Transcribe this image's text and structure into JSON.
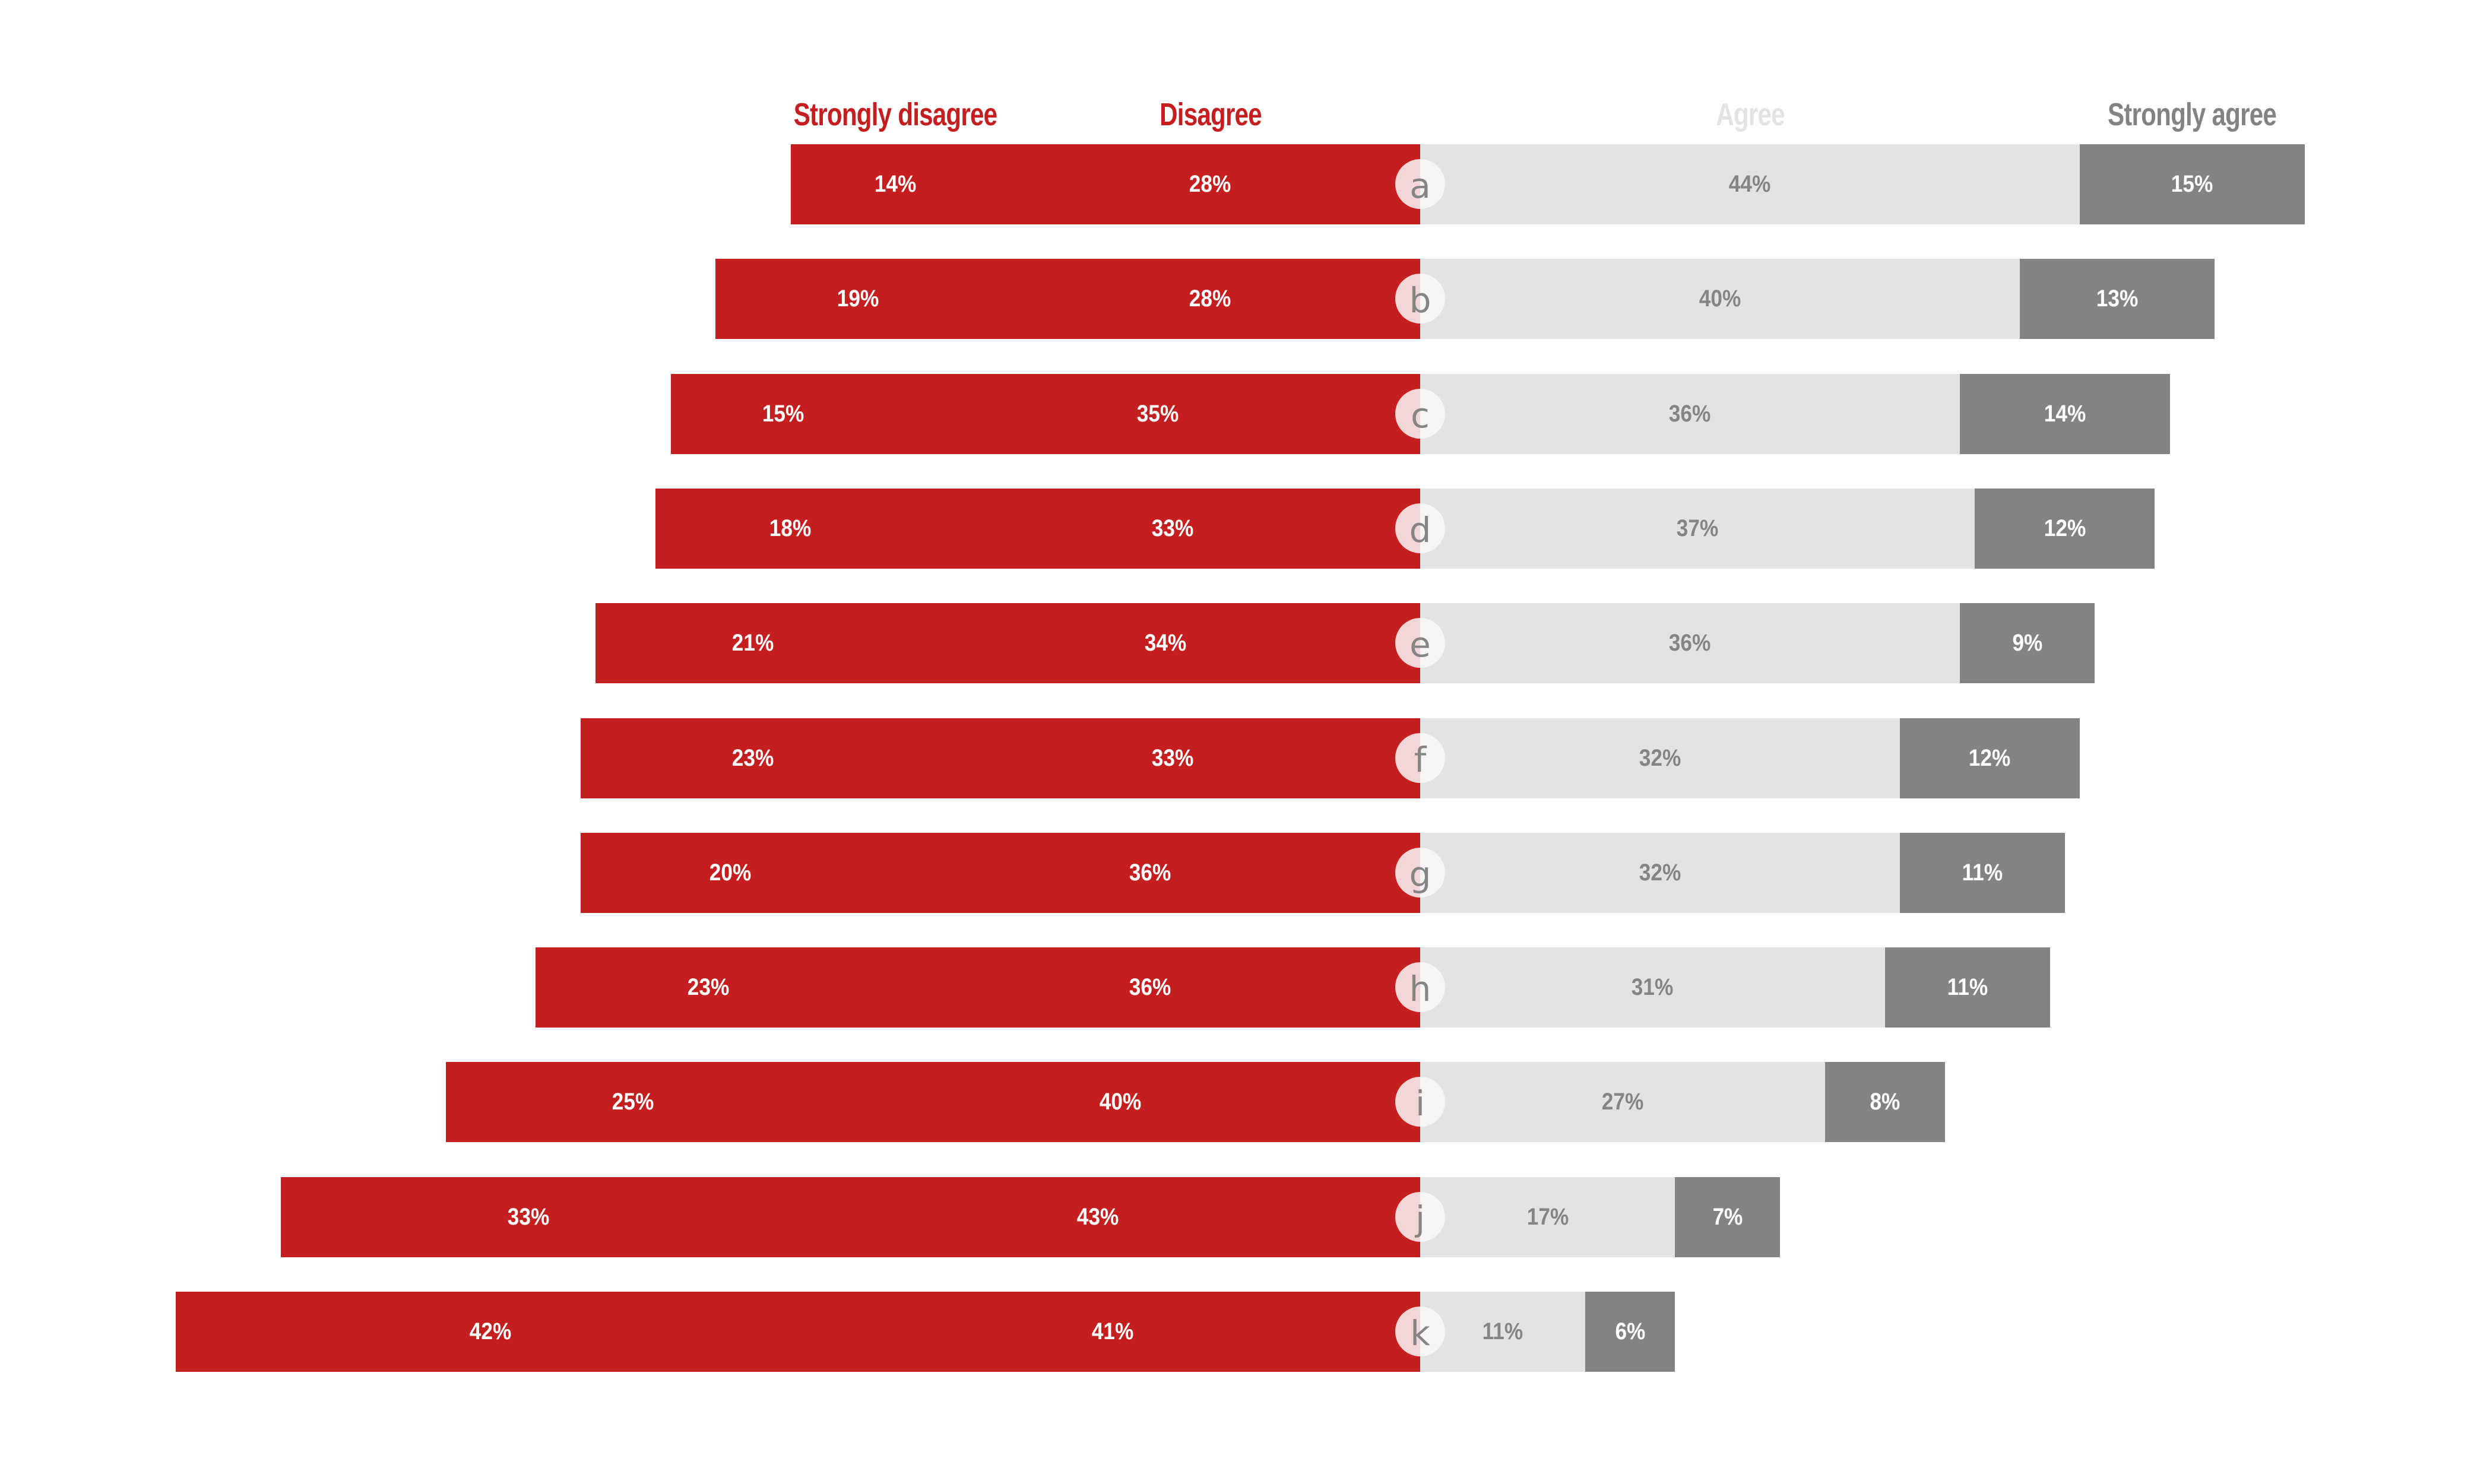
{
  "chart_data": {
    "type": "bar",
    "subtype": "diverging-stacked-horizontal",
    "title": "",
    "xlabel": "",
    "ylabel": "",
    "legend_position": "top",
    "grid": false,
    "categories": [
      "a",
      "b",
      "c",
      "d",
      "e",
      "f",
      "g",
      "h",
      "i",
      "j",
      "k"
    ],
    "series": [
      {
        "name": "Strongly disagree",
        "side": "left",
        "color": "#C51E1F",
        "text_color": "#FFFFFF",
        "values": [
          14,
          19,
          15,
          18,
          21,
          23,
          20,
          23,
          25,
          33,
          42
        ]
      },
      {
        "name": "Disagree",
        "side": "left",
        "color": "#C51E1F",
        "text_color": "#FFFFFF",
        "values": [
          28,
          28,
          35,
          33,
          34,
          33,
          36,
          36,
          40,
          43,
          41
        ]
      },
      {
        "name": "Agree",
        "side": "right",
        "color": "#E3E3E3",
        "text_color": "#858585",
        "values": [
          44,
          40,
          36,
          37,
          36,
          32,
          32,
          31,
          27,
          17,
          11
        ]
      },
      {
        "name": "Strongly agree",
        "side": "right",
        "color": "#838383",
        "text_color": "#FFFFFF",
        "values": [
          15,
          13,
          14,
          12,
          9,
          12,
          11,
          11,
          8,
          7,
          6
        ]
      }
    ],
    "value_suffix": "%"
  },
  "legend": {
    "strongly_disagree": {
      "label": "Strongly disagree",
      "color": "#C51E1F"
    },
    "disagree": {
      "label": "Disagree",
      "color": "#C51E1F"
    },
    "agree": {
      "label": "Agree",
      "color": "#E3E3E3"
    },
    "strongly_agree": {
      "label": "Strongly agree",
      "color": "#838383"
    }
  },
  "marker_colors": {
    "left": "#F3D6D7",
    "right": "#F6F6F6",
    "letter": "#858585"
  }
}
